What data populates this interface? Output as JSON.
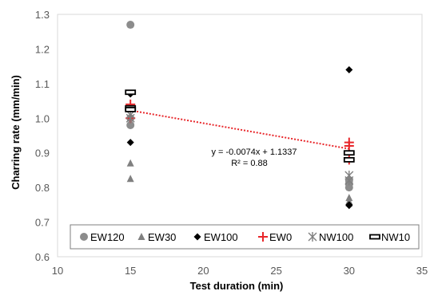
{
  "chart_data": {
    "type": "scatter",
    "xlabel": "Test duration (min)",
    "ylabel": "Charring rate (mm/min)",
    "xlim": [
      10,
      35
    ],
    "ylim": [
      0.6,
      1.3
    ],
    "x_ticks": [
      10,
      15,
      20,
      25,
      30,
      35
    ],
    "y_ticks": [
      0.6,
      0.7,
      0.8,
      0.9,
      1.0,
      1.1,
      1.2,
      1.3
    ],
    "x_tick_labels": [
      "10",
      "15",
      "20",
      "25",
      "30",
      "35"
    ],
    "y_tick_labels": [
      "0.6",
      "0.7",
      "0.8",
      "0.9",
      "1.0",
      "1.1",
      "1.2",
      "1.3"
    ],
    "grid": false,
    "legend_position": "bottom-inside",
    "series": [
      {
        "name": "EW120",
        "marker": "circle",
        "color": "#8c8c8c",
        "points": [
          [
            15,
            1.27
          ],
          [
            15,
            0.98
          ],
          [
            15,
            1.0
          ],
          [
            30,
            0.81
          ],
          [
            30,
            0.8
          ],
          [
            30,
            0.82
          ]
        ]
      },
      {
        "name": "EW30",
        "marker": "triangle",
        "color": "#808080",
        "points": [
          [
            15,
            0.87
          ],
          [
            15,
            0.825
          ],
          [
            30,
            0.77
          ],
          [
            30,
            0.76
          ],
          [
            30,
            0.755
          ]
        ]
      },
      {
        "name": "EW100",
        "marker": "diamond",
        "color": "#000000",
        "points": [
          [
            15,
            1.07
          ],
          [
            15,
            0.93
          ],
          [
            30,
            1.14
          ],
          [
            30,
            0.75
          ],
          [
            30,
            0.748
          ]
        ]
      },
      {
        "name": "EW0",
        "marker": "plus",
        "color": "#e8262a",
        "points": [
          [
            15,
            1.04
          ],
          [
            15,
            1.0
          ],
          [
            30,
            0.93
          ],
          [
            30,
            0.92
          ],
          [
            30,
            0.88
          ]
        ]
      },
      {
        "name": "NW100",
        "marker": "asterisk",
        "color": "#7f7f7f",
        "points": [
          [
            15,
            1.01
          ],
          [
            15,
            1.0
          ],
          [
            30,
            0.835
          ],
          [
            30,
            0.82
          ]
        ]
      },
      {
        "name": "NW10",
        "marker": "bar",
        "color": "#000000",
        "points": [
          [
            15,
            1.075
          ],
          [
            15,
            1.03
          ],
          [
            15,
            1.025
          ],
          [
            30,
            0.9
          ],
          [
            30,
            0.88
          ]
        ]
      }
    ],
    "trendline": {
      "style": "dotted",
      "color": "#e8262a",
      "x_range": [
        15,
        30
      ],
      "slope": -0.0074,
      "intercept": 1.1337,
      "equation_text": "y = -0.0074x  + 1.1337",
      "r2_text": "R² = 0.88"
    }
  }
}
